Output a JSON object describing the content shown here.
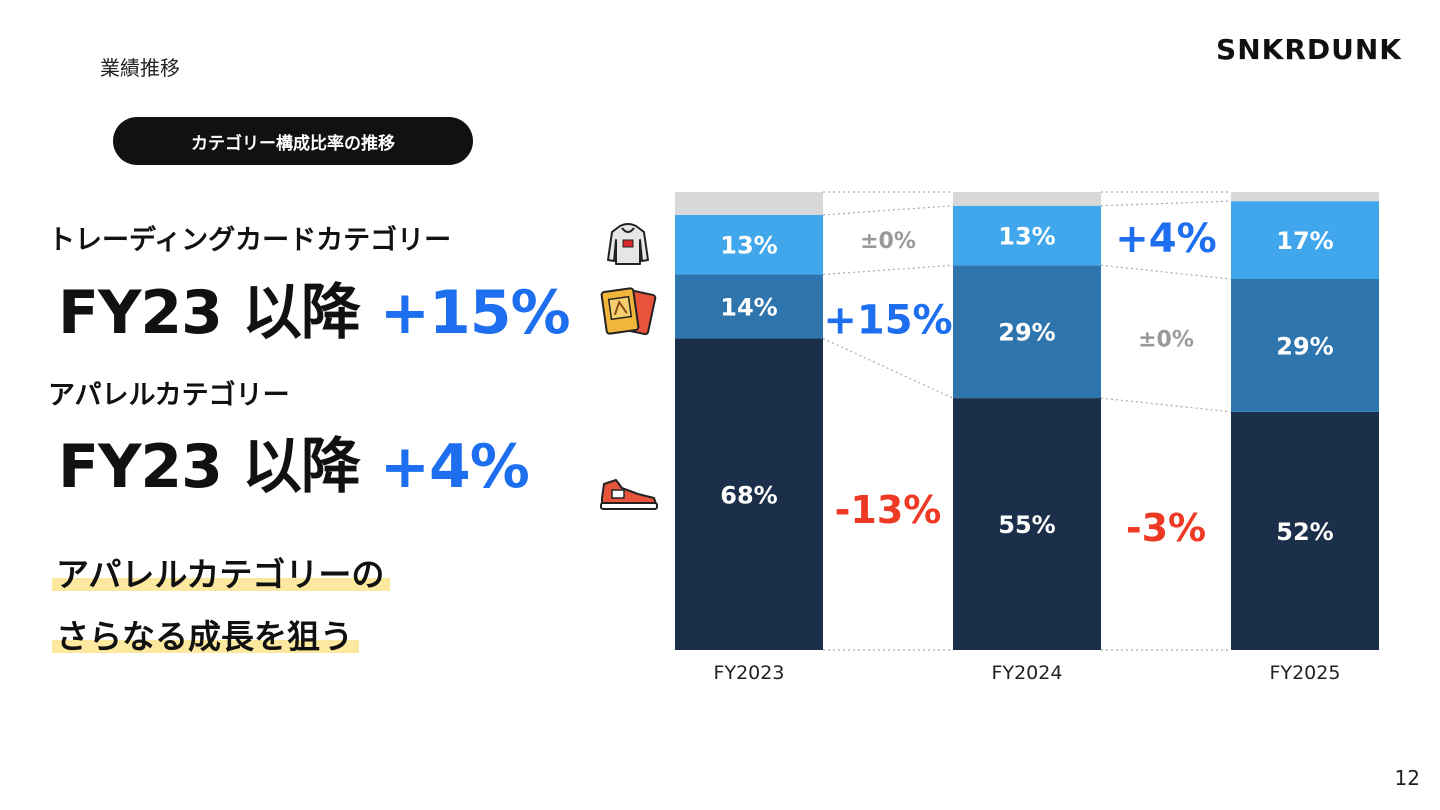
{
  "header": {
    "section": "業績推移",
    "logo": "SNKRDUNK",
    "pill": "カテゴリー構成比率の推移"
  },
  "left": {
    "card_title": "トレーディングカードカテゴリー",
    "card_line_prefix": "FY23 以降 ",
    "card_change": "+15%",
    "apparel_title": "アパレルカテゴリー",
    "apparel_line_prefix": "FY23 以降 ",
    "apparel_change": "+4%",
    "tagline_1": "アパレルカテゴリーの",
    "tagline_2": "さらなる成長を狙う"
  },
  "page_number": "12",
  "colors": {
    "sneakers": "#1c2f4a",
    "cards": "#2e75ae",
    "apparel": "#41a7ec",
    "other": "#d8d8d8",
    "increase": "#1e6ff0",
    "decrease": "#ee3a24",
    "unchanged": "#999999"
  },
  "icons": {
    "apparel": "hoodie-icon",
    "cards": "trading-cards-icon",
    "sneakers": "sneaker-icon"
  },
  "chart_data": {
    "type": "bar",
    "stacked": true,
    "categories": [
      "FY2023",
      "FY2024",
      "FY2025"
    ],
    "series": [
      {
        "key": "sneakers",
        "values": [
          68,
          55,
          52
        ],
        "labels": [
          "68%",
          "55%",
          "52%"
        ]
      },
      {
        "key": "cards",
        "values": [
          14,
          29,
          29
        ],
        "labels": [
          "14%",
          "29%",
          "29%"
        ]
      },
      {
        "key": "apparel",
        "values": [
          13,
          13,
          17
        ],
        "labels": [
          "13%",
          "13%",
          "17%"
        ]
      },
      {
        "key": "other",
        "values": [
          5,
          3,
          2
        ],
        "labels": [
          "",
          "",
          ""
        ]
      }
    ],
    "changes": [
      {
        "apparel": "±0%",
        "cards": "+15%",
        "sneakers": "-13%"
      },
      {
        "apparel": "+4%",
        "cards": "±0%",
        "sneakers": "-3%"
      }
    ],
    "ylim": [
      0,
      100
    ],
    "grid": false,
    "legend": "icons-left"
  }
}
